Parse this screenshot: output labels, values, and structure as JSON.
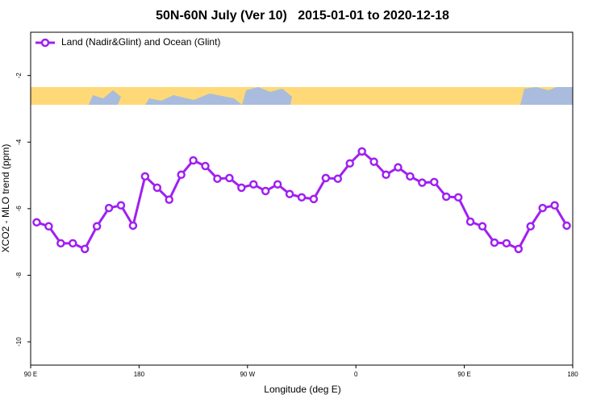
{
  "chart_data": {
    "type": "line",
    "title": "50N-60N July (Ver 10)   2015-01-01 to 2020-12-18",
    "x_label": "Longitude (deg E)",
    "y_label": "XCO2 - MLO trend (ppm)",
    "x": [
      95,
      105,
      115,
      125,
      135,
      145,
      155,
      165,
      175,
      185,
      195,
      205,
      215,
      225,
      235,
      245,
      255,
      265,
      275,
      285,
      295,
      305,
      315,
      325,
      335,
      345,
      355,
      365,
      375,
      385,
      395,
      405,
      415,
      425,
      435,
      445,
      455,
      465,
      475,
      485,
      495,
      505,
      515,
      525,
      535
    ],
    "series": [
      {
        "name": "Land (Nadir&Glint) and Ocean (Glint)",
        "color": "#a020f0",
        "values": [
          -6.41,
          -6.53,
          -7.04,
          -7.04,
          -7.21,
          -6.53,
          -5.98,
          -5.9,
          -6.51,
          -5.03,
          -5.37,
          -5.73,
          -4.98,
          -4.55,
          -4.72,
          -5.1,
          -5.08,
          -5.37,
          -5.27,
          -5.47,
          -5.27,
          -5.56,
          -5.66,
          -5.71,
          -5.08,
          -5.1,
          -4.64,
          -4.28,
          -4.59,
          -4.98,
          -4.76,
          -5.03,
          -5.22,
          -5.2,
          -5.64,
          -5.66,
          -6.39,
          -6.53,
          -7.02,
          -7.04,
          -7.21,
          -6.53,
          -5.98,
          -5.9,
          -6.51
        ]
      }
    ],
    "xlim": [
      90,
      540
    ],
    "xticks": [
      {
        "value": 90,
        "label": "90 E"
      },
      180,
      {
        "value": 270,
        "label": "90 W"
      },
      {
        "value": 360,
        "label": "0"
      },
      {
        "value": 450,
        "label": "90 E"
      },
      {
        "value": 540,
        "label": "180"
      }
    ],
    "ylim": [
      -10.7,
      -0.7
    ],
    "yticks": [
      -2,
      -4,
      -6,
      -8,
      -10
    ],
    "legend_loc": "top-left",
    "grid": false
  }
}
